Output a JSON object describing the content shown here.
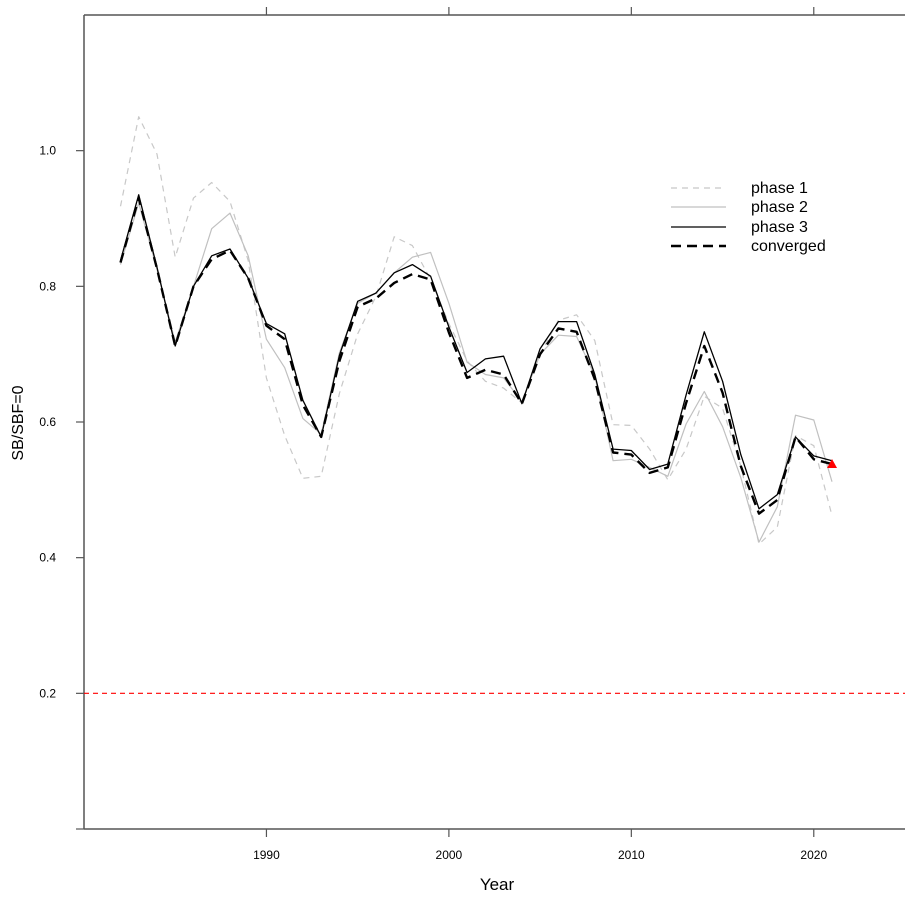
{
  "chart_data": {
    "type": "line",
    "xlabel": "Year",
    "ylabel": "SB/SBF=0",
    "xlim": [
      1980,
      2025
    ],
    "ylim": [
      0.0,
      1.2
    ],
    "x_ticks": [
      1990,
      2000,
      2010,
      2020
    ],
    "x_tick_labels": [
      "1990",
      "2000",
      "2010",
      "2020"
    ],
    "y_ticks": [
      0.2,
      0.4,
      0.6,
      0.8,
      1.0
    ],
    "y_tick_labels": [
      "0.2",
      "0.4",
      "0.6",
      "0.8",
      "1.0"
    ],
    "grid": false,
    "legend_position": "top-right",
    "reference_line": {
      "y": 0.2,
      "color": "#ff0000",
      "style": "dashed"
    },
    "final_point": {
      "x": 2021,
      "y": 0.538,
      "color": "#ff0000",
      "marker": "triangle"
    },
    "x": [
      1982,
      1983,
      1984,
      1985,
      1986,
      1987,
      1988,
      1989,
      1990,
      1991,
      1992,
      1993,
      1994,
      1995,
      1996,
      1997,
      1998,
      1999,
      2000,
      2001,
      2002,
      2003,
      2004,
      2005,
      2006,
      2007,
      2008,
      2009,
      2010,
      2011,
      2012,
      2013,
      2014,
      2015,
      2016,
      2017,
      2018,
      2019,
      2020,
      2021
    ],
    "series": [
      {
        "name": "phase 1",
        "style": "dashed",
        "color": "#c8c8c8",
        "width": 1.2,
        "values": [
          0.918,
          1.05,
          0.995,
          0.843,
          0.93,
          0.953,
          0.925,
          0.838,
          0.665,
          0.58,
          0.517,
          0.52,
          0.642,
          0.73,
          0.785,
          0.873,
          0.86,
          0.81,
          0.745,
          0.69,
          0.66,
          0.65,
          0.628,
          0.7,
          0.75,
          0.758,
          0.72,
          0.596,
          0.595,
          0.56,
          0.515,
          0.56,
          0.638,
          0.62,
          0.535,
          0.42,
          0.445,
          0.58,
          0.565,
          0.462
        ]
      },
      {
        "name": "phase 2",
        "style": "solid",
        "color": "#c0c0c0",
        "width": 1.2,
        "values": [
          0.832,
          0.923,
          0.825,
          0.718,
          0.8,
          0.885,
          0.908,
          0.845,
          0.722,
          0.68,
          0.605,
          0.582,
          0.702,
          0.775,
          0.79,
          0.82,
          0.843,
          0.85,
          0.775,
          0.688,
          0.67,
          0.665,
          0.63,
          0.7,
          0.728,
          0.726,
          0.668,
          0.543,
          0.545,
          0.533,
          0.52,
          0.597,
          0.645,
          0.593,
          0.518,
          0.423,
          0.475,
          0.61,
          0.603,
          0.512
        ]
      },
      {
        "name": "phase 3",
        "style": "solid",
        "color": "#000000",
        "width": 1.3,
        "values": [
          0.838,
          0.935,
          0.828,
          0.712,
          0.8,
          0.845,
          0.855,
          0.812,
          0.745,
          0.73,
          0.632,
          0.578,
          0.698,
          0.778,
          0.79,
          0.82,
          0.832,
          0.815,
          0.74,
          0.673,
          0.693,
          0.697,
          0.627,
          0.708,
          0.748,
          0.748,
          0.67,
          0.56,
          0.558,
          0.53,
          0.538,
          0.64,
          0.733,
          0.66,
          0.552,
          0.472,
          0.493,
          0.578,
          0.55,
          0.543
        ]
      },
      {
        "name": "converged",
        "style": "dashed-bold",
        "color": "#000000",
        "width": 2.4,
        "values": [
          0.835,
          0.93,
          0.826,
          0.712,
          0.8,
          0.84,
          0.853,
          0.812,
          0.742,
          0.722,
          0.625,
          0.578,
          0.69,
          0.77,
          0.782,
          0.805,
          0.818,
          0.81,
          0.732,
          0.665,
          0.677,
          0.67,
          0.627,
          0.7,
          0.738,
          0.733,
          0.663,
          0.555,
          0.552,
          0.525,
          0.533,
          0.628,
          0.712,
          0.643,
          0.535,
          0.465,
          0.485,
          0.578,
          0.545,
          0.538
        ]
      }
    ]
  }
}
